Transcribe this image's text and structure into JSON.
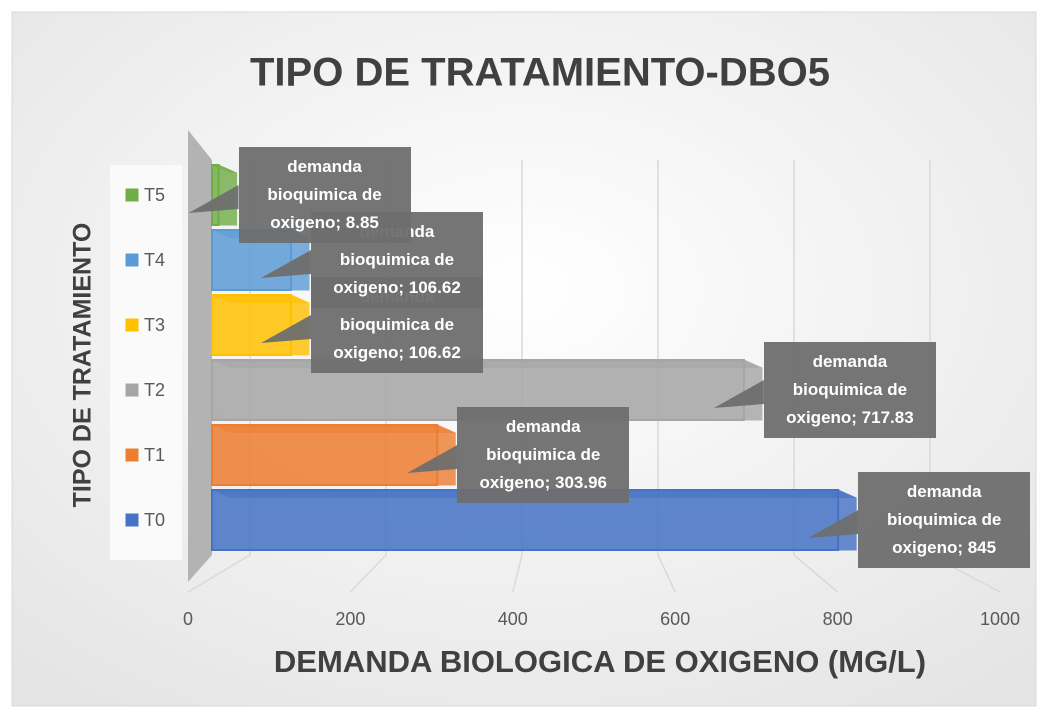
{
  "chart_data": {
    "type": "bar3d_horizontal",
    "title": "TIPO DE TRATAMIENTO-DBO5",
    "x_label": "DEMANDA BIOLOGICA DE OXIGENO (MG/L)",
    "y_label": "TIPO DE TRATAMIENTO",
    "series_name": "demanda bioquimica de oxigeno",
    "categories": [
      "T0",
      "T1",
      "T2",
      "T3",
      "T4",
      "T5"
    ],
    "values": [
      845,
      303.96,
      717.83,
      106.62,
      106.62,
      8.85
    ],
    "value_labels": [
      "demanda bioquimica de oxigeno; 845",
      "demanda bioquimica de oxigeno; 303.96",
      "demanda bioquimica de oxigeno; 717.83",
      "demanda bioquimica de oxigeno; 106.62",
      "demanda bioquimica de oxigeno; 106.62",
      "demanda bioquimica de oxigeno; 8.85"
    ],
    "colors": [
      "#4472c4",
      "#ed7d31",
      "#a5a5a5",
      "#ffc000",
      "#5b9bd5",
      "#70ad47"
    ],
    "xlim": [
      0,
      1000
    ],
    "xticks": [
      0,
      200,
      400,
      600,
      800,
      1000
    ],
    "grid": true,
    "legend": "left"
  }
}
